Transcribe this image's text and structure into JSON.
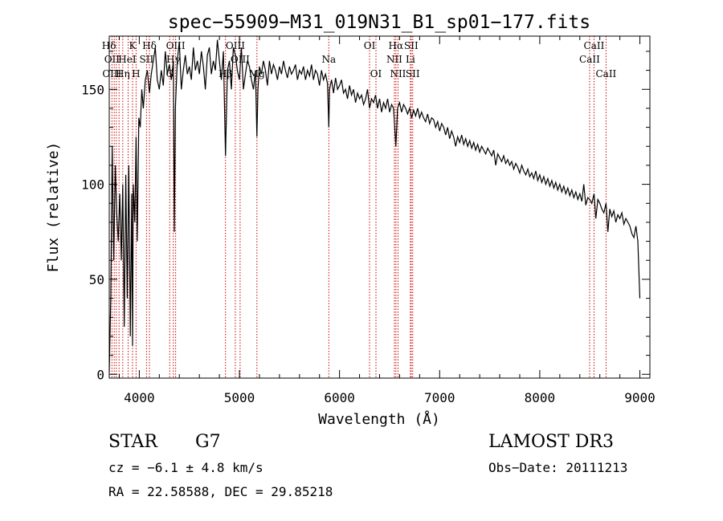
{
  "chart_data": {
    "type": "line",
    "title": "spec−55909−M31_019N31_B1_sp01−177.fits",
    "xlabel": "Wavelength (Å)",
    "ylabel": "Flux (relative)",
    "xlim": [
      3700,
      9100
    ],
    "ylim": [
      -2,
      178
    ],
    "xticks": [
      4000,
      5000,
      6000,
      7000,
      8000,
      9000
    ],
    "xtick_labels": [
      "4000",
      "5000",
      "6000",
      "7000",
      "8000",
      "9000"
    ],
    "yticks": [
      0,
      50,
      100,
      150
    ],
    "ytick_labels": [
      "0",
      "50",
      "100",
      "150"
    ],
    "grid": false,
    "series": [
      {
        "name": "spectrum",
        "x": [
          3700,
          3715,
          3730,
          3745,
          3760,
          3775,
          3790,
          3805,
          3820,
          3835,
          3850,
          3865,
          3880,
          3895,
          3910,
          3925,
          3933,
          3940,
          3955,
          3968,
          3980,
          3995,
          4010,
          4025,
          4040,
          4060,
          4080,
          4101,
          4120,
          4140,
          4160,
          4180,
          4200,
          4220,
          4240,
          4260,
          4280,
          4300,
          4320,
          4340,
          4350,
          4360,
          4380,
          4400,
          4420,
          4440,
          4460,
          4480,
          4500,
          4520,
          4540,
          4560,
          4580,
          4600,
          4620,
          4640,
          4660,
          4680,
          4700,
          4720,
          4740,
          4760,
          4780,
          4800,
          4820,
          4840,
          4861,
          4880,
          4900,
          4920,
          4940,
          4960,
          4980,
          5000,
          5020,
          5040,
          5060,
          5080,
          5100,
          5120,
          5140,
          5160,
          5175,
          5185,
          5200,
          5220,
          5240,
          5260,
          5280,
          5300,
          5320,
          5340,
          5360,
          5380,
          5400,
          5420,
          5440,
          5460,
          5480,
          5500,
          5520,
          5540,
          5560,
          5580,
          5600,
          5620,
          5640,
          5660,
          5680,
          5700,
          5720,
          5740,
          5760,
          5780,
          5800,
          5820,
          5840,
          5860,
          5880,
          5893,
          5900,
          5920,
          5940,
          5960,
          5980,
          6000,
          6020,
          6040,
          6060,
          6080,
          6100,
          6120,
          6140,
          6160,
          6180,
          6200,
          6220,
          6240,
          6260,
          6280,
          6300,
          6320,
          6340,
          6360,
          6380,
          6400,
          6420,
          6440,
          6460,
          6480,
          6500,
          6520,
          6540,
          6563,
          6580,
          6600,
          6620,
          6640,
          6660,
          6680,
          6700,
          6720,
          6740,
          6760,
          6780,
          6800,
          6820,
          6840,
          6860,
          6880,
          6900,
          6920,
          6940,
          6960,
          6980,
          7000,
          7020,
          7040,
          7060,
          7080,
          7100,
          7120,
          7140,
          7160,
          7180,
          7200,
          7220,
          7240,
          7260,
          7280,
          7300,
          7320,
          7340,
          7360,
          7380,
          7400,
          7420,
          7440,
          7460,
          7480,
          7500,
          7520,
          7540,
          7560,
          7580,
          7600,
          7620,
          7640,
          7660,
          7680,
          7700,
          7720,
          7740,
          7760,
          7780,
          7800,
          7820,
          7840,
          7860,
          7880,
          7900,
          7920,
          7940,
          7960,
          7980,
          8000,
          8020,
          8040,
          8060,
          8080,
          8100,
          8120,
          8140,
          8160,
          8180,
          8200,
          8220,
          8240,
          8260,
          8280,
          8300,
          8320,
          8340,
          8360,
          8380,
          8400,
          8420,
          8440,
          8460,
          8480,
          8500,
          8520,
          8542,
          8560,
          8580,
          8600,
          8620,
          8640,
          8662,
          8680,
          8700,
          8720,
          8740,
          8760,
          8780,
          8800,
          8820,
          8840,
          8860,
          8880,
          8900,
          8920,
          8940,
          8960,
          8980,
          9000
        ],
        "y": [
          1,
          40,
          120,
          60,
          110,
          85,
          70,
          95,
          60,
          100,
          25,
          105,
          40,
          110,
          20,
          95,
          15,
          100,
          80,
          125,
          70,
          135,
          130,
          150,
          140,
          155,
          160,
          148,
          158,
          165,
          172,
          155,
          150,
          160,
          152,
          170,
          158,
          163,
          155,
          165,
          75,
          140,
          165,
          175,
          150,
          160,
          168,
          158,
          162,
          155,
          172,
          160,
          165,
          158,
          170,
          162,
          150,
          168,
          172,
          158,
          165,
          160,
          176,
          165,
          155,
          170,
          115,
          160,
          165,
          150,
          172,
          168,
          160,
          155,
          172,
          150,
          158,
          165,
          162,
          155,
          150,
          160,
          125,
          150,
          162,
          158,
          165,
          160,
          152,
          165,
          158,
          163,
          160,
          155,
          162,
          158,
          165,
          160,
          156,
          162,
          158,
          160,
          163,
          155,
          160,
          158,
          162,
          155,
          160,
          157,
          163,
          155,
          160,
          158,
          152,
          160,
          155,
          158,
          153,
          130,
          150,
          155,
          148,
          156,
          150,
          152,
          155,
          148,
          150,
          145,
          152,
          147,
          150,
          143,
          148,
          145,
          147,
          142,
          145,
          150,
          140,
          145,
          143,
          147,
          140,
          145,
          138,
          143,
          140,
          145,
          138,
          142,
          140,
          120,
          140,
          143,
          138,
          142,
          140,
          137,
          140,
          135,
          139,
          136,
          140,
          135,
          138,
          135,
          133,
          137,
          132,
          135,
          134,
          130,
          133,
          128,
          132,
          130,
          126,
          130,
          124,
          128,
          125,
          120,
          125,
          122,
          126,
          121,
          124,
          120,
          123,
          119,
          122,
          118,
          121,
          117,
          120,
          118,
          116,
          119,
          117,
          115,
          118,
          110,
          116,
          114,
          112,
          115,
          111,
          113,
          110,
          112,
          108,
          111,
          109,
          106,
          110,
          107,
          105,
          108,
          104,
          106,
          103,
          107,
          102,
          105,
          101,
          104,
          100,
          103,
          99,
          102,
          98,
          101,
          97,
          100,
          96,
          99,
          95,
          98,
          94,
          97,
          93,
          96,
          92,
          95,
          91,
          100,
          89,
          93,
          92,
          90,
          95,
          82,
          92,
          90,
          87,
          85,
          90,
          75,
          87,
          83,
          86,
          80,
          84,
          82,
          85,
          79,
          82,
          80,
          78,
          74,
          72,
          78,
          70,
          40
        ]
      }
    ],
    "line_labels": [
      {
        "text": "Hδ",
        "x": 3697,
        "row": 1
      },
      {
        "text": "K",
        "x": 3933,
        "row": 1
      },
      {
        "text": "Hδ",
        "x": 4101,
        "row": 1
      },
      {
        "text": "OIII",
        "x": 4363,
        "row": 1
      },
      {
        "text": "OIII",
        "x": 4959,
        "row": 1
      },
      {
        "text": "OI",
        "x": 6300,
        "row": 1
      },
      {
        "text": "Hα",
        "x": 6563,
        "row": 1
      },
      {
        "text": "SII",
        "x": 6716,
        "row": 1
      },
      {
        "text": "CaII",
        "x": 8542,
        "row": 1
      },
      {
        "text": "OII",
        "x": 3727,
        "row": 2
      },
      {
        "text": "HeI",
        "x": 3880,
        "row": 2
      },
      {
        "text": "SII",
        "x": 4072,
        "row": 2
      },
      {
        "text": "Hγ",
        "x": 4340,
        "row": 2
      },
      {
        "text": "OIII",
        "x": 5007,
        "row": 2
      },
      {
        "text": "Na",
        "x": 5893,
        "row": 2
      },
      {
        "text": "NII",
        "x": 6548,
        "row": 2
      },
      {
        "text": "Li",
        "x": 6708,
        "row": 2
      },
      {
        "text": "CaII",
        "x": 8498,
        "row": 2
      },
      {
        "text": "OIII",
        "x": 3727,
        "row": 3
      },
      {
        "text": "Hη",
        "x": 3835,
        "row": 3
      },
      {
        "text": "H",
        "x": 3968,
        "row": 3
      },
      {
        "text": "G",
        "x": 4304,
        "row": 3
      },
      {
        "text": "Hβ",
        "x": 4861,
        "row": 3
      },
      {
        "text": "Mg",
        "x": 5175,
        "row": 3
      },
      {
        "text": "OI",
        "x": 6364,
        "row": 3
      },
      {
        "text": "NII",
        "x": 6584,
        "row": 3
      },
      {
        "text": "SII",
        "x": 6731,
        "row": 3
      },
      {
        "text": "CaII",
        "x": 8662,
        "row": 3
      }
    ],
    "line_markers": [
      3727,
      3750,
      3771,
      3798,
      3835,
      3889,
      3933,
      3968,
      4072,
      4101,
      4304,
      4340,
      4363,
      4861,
      4959,
      5007,
      5175,
      5893,
      6300,
      6364,
      6548,
      6563,
      6584,
      6708,
      6716,
      6731,
      8498,
      8542,
      8662
    ]
  },
  "info": {
    "object_class": "STAR",
    "subclass": "G7",
    "survey": "LAMOST DR3",
    "cz": "cz = −6.1 ± 4.8 km/s",
    "obs_date": "Obs−Date: 20111213",
    "radec": "RA =  22.58588, DEC =  29.85218"
  },
  "colors": {
    "line": "#000000",
    "marker": "#cc0000",
    "axes": "#000000"
  }
}
